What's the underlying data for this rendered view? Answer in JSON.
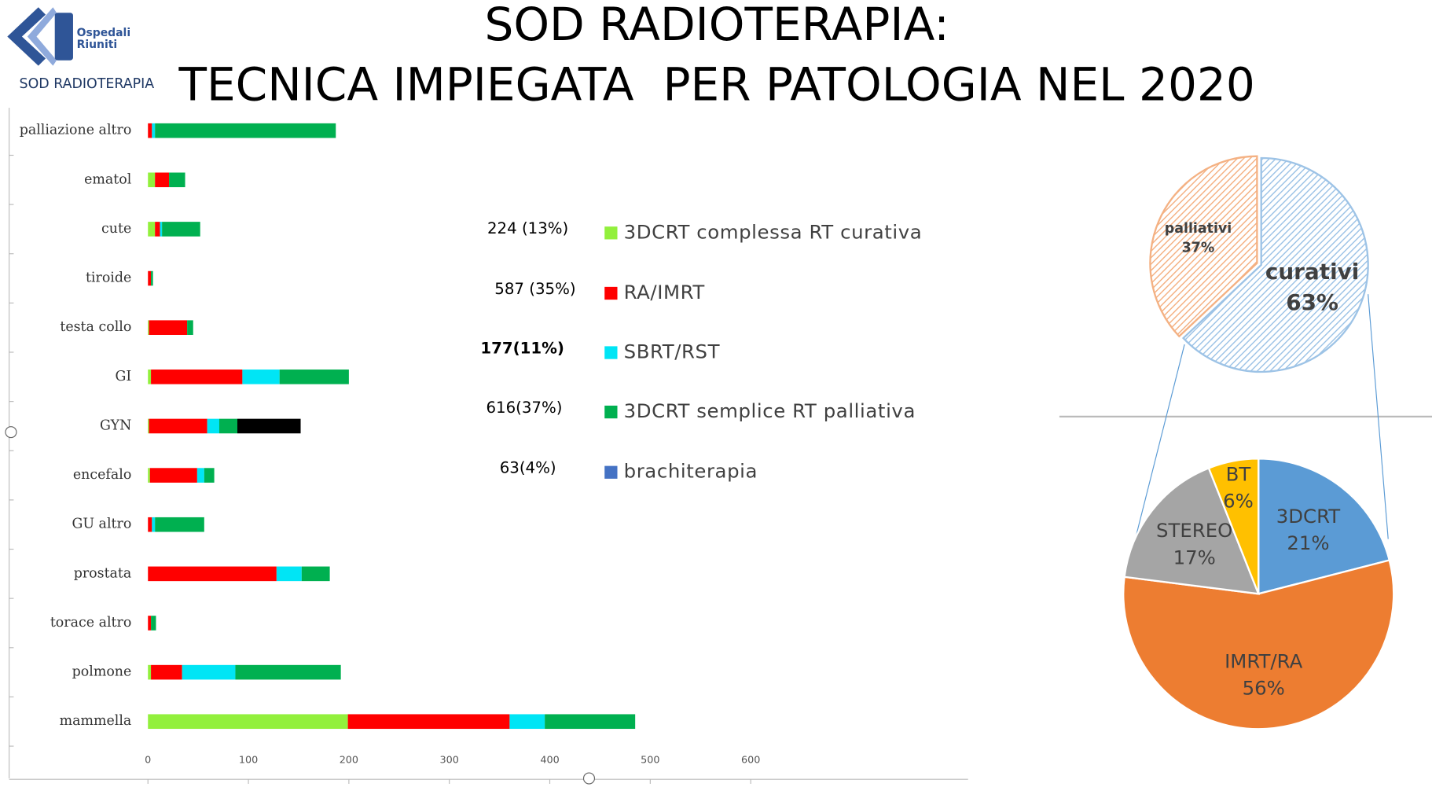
{
  "header": {
    "logo_text": [
      "Ospedali",
      "Riuniti"
    ],
    "department": "SOD RADIOTERAPIA",
    "title": [
      "SOD RADIOTERAPIA:",
      "TECNICA IMPIEGATA  PER PATOLOGIA NEL 2020"
    ]
  },
  "chart_data": [
    {
      "type": "bar",
      "orientation": "horizontal",
      "stacked": true,
      "categories": [
        "palliazione altro",
        "ematol",
        "cute",
        "tiroide",
        "testa collo",
        "GI",
        "GYN",
        "encefalo",
        "GU altro",
        "prostata",
        "torace altro",
        "polmone",
        "mammella"
      ],
      "series": [
        {
          "name": "3DCRT complessa RT curativa",
          "total_label": "224 (13%)",
          "color": "#92f03c",
          "values": [
            0,
            7,
            7,
            0,
            1,
            3,
            1,
            2,
            0,
            0,
            0,
            3,
            199
          ]
        },
        {
          "name": "RA/IMRT",
          "total_label": "587 (35%)",
          "color": "#ff0000",
          "values": [
            4,
            14,
            5,
            3,
            38,
            91,
            58,
            47,
            4,
            128,
            3,
            31,
            161
          ]
        },
        {
          "name": "SBRT/RST",
          "total_label": "177(11%)",
          "color": "#00e5f5",
          "values": [
            3,
            0,
            2,
            0,
            0,
            37,
            12,
            7,
            3,
            25,
            0,
            53,
            35
          ]
        },
        {
          "name": "3DCRT semplice RT palliativa",
          "total_label": "616(37%)",
          "color": "#00b050",
          "values": [
            180,
            16,
            38,
            2,
            6,
            69,
            18,
            10,
            49,
            28,
            5,
            105,
            90
          ]
        },
        {
          "name": "brachiterapia",
          "total_label": "63(4%)",
          "color": "#000000",
          "legend_color": "#4472c4",
          "values": [
            0,
            0,
            0,
            0,
            0,
            0,
            63,
            0,
            0,
            0,
            0,
            0,
            0
          ]
        }
      ],
      "xlim": [
        0,
        800
      ],
      "xticks": [
        0,
        100,
        200,
        300,
        400,
        500,
        600
      ]
    },
    {
      "type": "pie",
      "hatched": true,
      "categories": [
        "curativi",
        "palliativi"
      ],
      "values": [
        63,
        37
      ],
      "value_labels": [
        "63%",
        "37%"
      ],
      "colors": [
        "#9dc3e6",
        "#f4b183"
      ]
    },
    {
      "type": "pie",
      "categories": [
        "3DCRT",
        "IMRT/RA",
        "STEREO",
        "BT"
      ],
      "values": [
        21,
        56,
        17,
        6
      ],
      "value_labels": [
        "21%",
        "56%",
        "17%",
        "6%"
      ],
      "colors": [
        "#5b9bd5",
        "#ed7d31",
        "#a5a5a5",
        "#ffc000"
      ]
    }
  ]
}
